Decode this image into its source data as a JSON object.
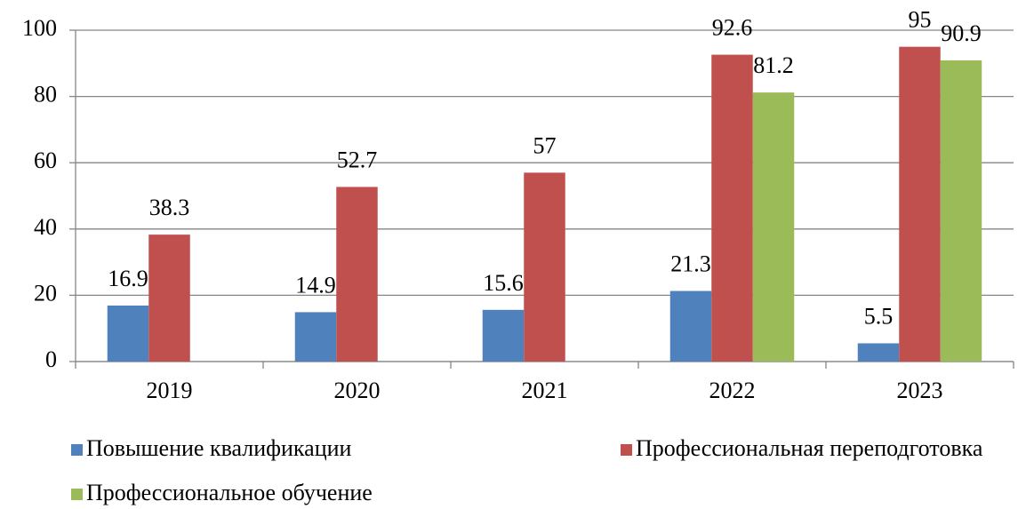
{
  "chart_data": {
    "type": "bar",
    "categories": [
      "2019",
      "2020",
      "2021",
      "2022",
      "2023"
    ],
    "series": [
      {
        "name": "Повышение квалификации",
        "color": "#4f81bd",
        "values": [
          16.9,
          14.9,
          15.6,
          21.3,
          5.5
        ]
      },
      {
        "name": "Профессиональная переподготовка",
        "color": "#c0504d",
        "values": [
          38.3,
          52.7,
          57,
          92.6,
          95
        ]
      },
      {
        "name": "Профессиональное обучение",
        "color": "#9bbb59",
        "values": [
          null,
          null,
          null,
          81.2,
          90.9
        ]
      }
    ],
    "ylim": [
      0,
      100
    ],
    "yticks": [
      0,
      20,
      40,
      60,
      80,
      100
    ],
    "grid": true,
    "legend": "bottom"
  }
}
